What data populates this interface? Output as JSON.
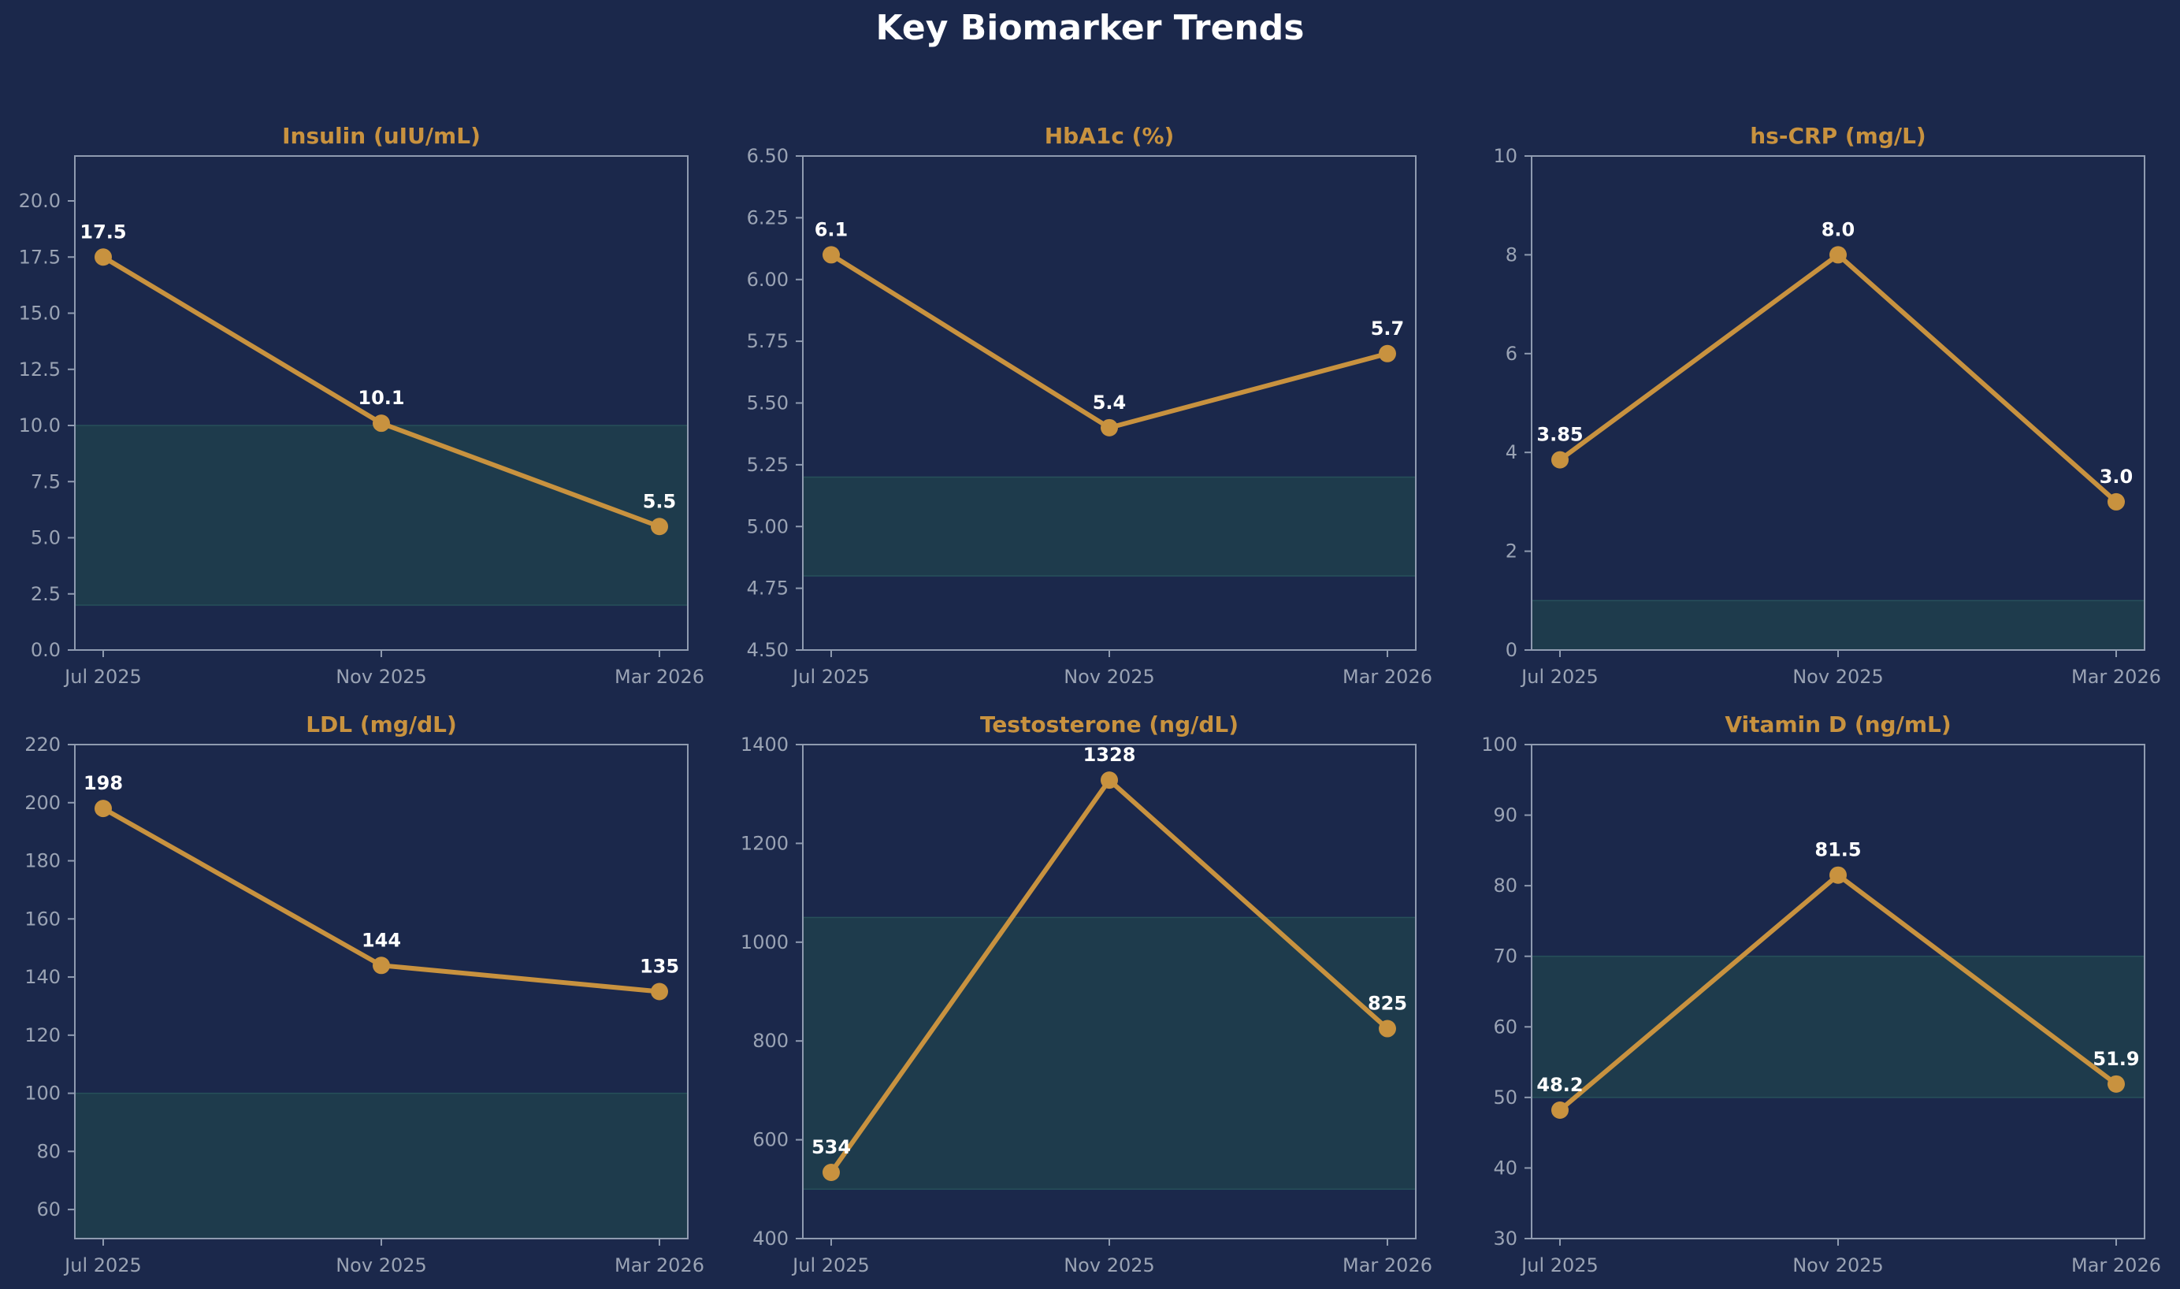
{
  "title": "Key Biomarker Trends",
  "colors": {
    "background": "#1b284b",
    "line": "#c8923f",
    "title_text": "#c8923f",
    "axis": "#8f9bb0",
    "tick_text": "#9aa3b4",
    "reference_band": "#1e3b4c",
    "reference_band_edge": "#27505a",
    "data_label": "#ffffff"
  },
  "chart_data": [
    {
      "type": "line",
      "title": "Insulin (uIU/mL)",
      "categories": [
        "Jul 2025",
        "Nov 2025",
        "Mar 2026"
      ],
      "values": [
        17.5,
        10.1,
        5.5
      ],
      "value_labels": [
        "17.5",
        "10.1",
        "5.5"
      ],
      "ylim": [
        0,
        22
      ],
      "yticks": [
        0,
        2.5,
        5,
        7.5,
        10,
        12.5,
        15,
        17.5,
        20
      ],
      "ytick_labels": [
        "0.0",
        "2.5",
        "5.0",
        "7.5",
        "10.0",
        "12.5",
        "15.0",
        "17.5",
        "20.0"
      ],
      "reference_range": [
        2,
        10
      ],
      "grid": false
    },
    {
      "type": "line",
      "title": "HbA1c (%)",
      "categories": [
        "Jul 2025",
        "Nov 2025",
        "Mar 2026"
      ],
      "values": [
        6.1,
        5.4,
        5.7
      ],
      "value_labels": [
        "6.1",
        "5.4",
        "5.7"
      ],
      "ylim": [
        4.5,
        6.5
      ],
      "yticks": [
        4.5,
        4.75,
        5,
        5.25,
        5.5,
        5.75,
        6,
        6.25,
        6.5
      ],
      "ytick_labels": [
        "4.50",
        "4.75",
        "5.00",
        "5.25",
        "5.50",
        "5.75",
        "6.00",
        "6.25",
        "6.50"
      ],
      "reference_range": [
        4.8,
        5.2
      ],
      "grid": false
    },
    {
      "type": "line",
      "title": "hs-CRP (mg/L)",
      "categories": [
        "Jul 2025",
        "Nov 2025",
        "Mar 2026"
      ],
      "values": [
        3.85,
        8.0,
        3.0
      ],
      "value_labels": [
        "3.85",
        "8.0",
        "3.0"
      ],
      "ylim": [
        0,
        10
      ],
      "yticks": [
        0,
        2,
        4,
        6,
        8,
        10
      ],
      "ytick_labels": [
        "0",
        "2",
        "4",
        "6",
        "8",
        "10"
      ],
      "reference_range": [
        0,
        1
      ],
      "grid": false
    },
    {
      "type": "line",
      "title": "LDL (mg/dL)",
      "categories": [
        "Jul 2025",
        "Nov 2025",
        "Mar 2026"
      ],
      "values": [
        198,
        144,
        135
      ],
      "value_labels": [
        "198",
        "144",
        "135"
      ],
      "ylim": [
        50,
        220
      ],
      "yticks": [
        60,
        80,
        100,
        120,
        140,
        160,
        180,
        200,
        220
      ],
      "ytick_labels": [
        "60",
        "80",
        "100",
        "120",
        "140",
        "160",
        "180",
        "200",
        "220"
      ],
      "reference_range": [
        50,
        100
      ],
      "grid": false
    },
    {
      "type": "line",
      "title": "Testosterone (ng/dL)",
      "categories": [
        "Jul 2025",
        "Nov 2025",
        "Mar 2026"
      ],
      "values": [
        534,
        1328,
        825
      ],
      "value_labels": [
        "534",
        "1328",
        "825"
      ],
      "ylim": [
        400,
        1400
      ],
      "yticks": [
        400,
        600,
        800,
        1000,
        1200,
        1400
      ],
      "ytick_labels": [
        "400",
        "600",
        "800",
        "1000",
        "1200",
        "1400"
      ],
      "reference_range": [
        500,
        1050
      ],
      "grid": false
    },
    {
      "type": "line",
      "title": "Vitamin D (ng/mL)",
      "categories": [
        "Jul 2025",
        "Nov 2025",
        "Mar 2026"
      ],
      "values": [
        48.2,
        81.5,
        51.9
      ],
      "value_labels": [
        "48.2",
        "81.5",
        "51.9"
      ],
      "ylim": [
        30,
        100
      ],
      "yticks": [
        30,
        40,
        50,
        60,
        70,
        80,
        90,
        100
      ],
      "ytick_labels": [
        "30",
        "40",
        "50",
        "60",
        "70",
        "80",
        "90",
        "100"
      ],
      "reference_range": [
        50,
        70
      ],
      "grid": false
    }
  ]
}
